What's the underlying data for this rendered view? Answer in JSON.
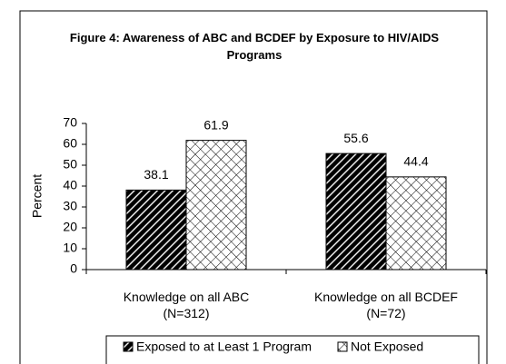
{
  "chart_data": {
    "type": "bar",
    "title": "Figure 4: Awareness of ABC and BCDEF by Exposure to HIV/AIDS Programs",
    "y_label": "Percent",
    "categories": [
      "Knowledge on all ABC\n(N=312)",
      "Knowledge on all BCDEF\n(N=72)"
    ],
    "series": [
      {
        "name": "Exposed to at Least 1 Program",
        "color": "#000000",
        "pattern": "diagonal",
        "values": [
          38.1,
          55.6
        ]
      },
      {
        "name": "Not Exposed",
        "color": "#000000",
        "pattern": "crosshatch",
        "values": [
          61.9,
          44.4
        ]
      }
    ],
    "ylim": [
      0,
      70
    ],
    "yticks": [
      0,
      10,
      20,
      30,
      40,
      50,
      60,
      70
    ],
    "grid": false,
    "legend": "bottom"
  }
}
